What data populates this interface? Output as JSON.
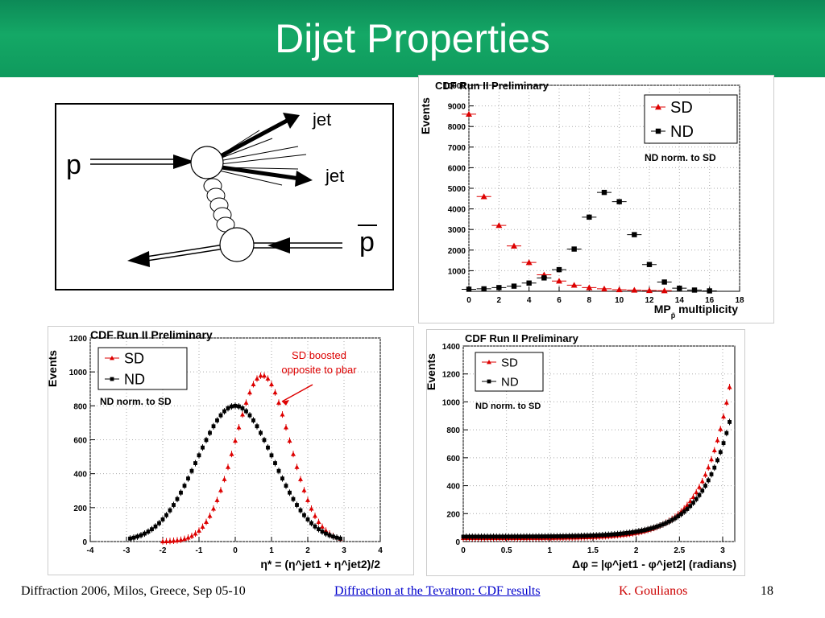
{
  "slide": {
    "title": "Dijet Properties",
    "footer_left": "Diffraction 2006, Milos, Greece, Sep 05-10",
    "footer_link": "Diffraction at the Tevatron: CDF results",
    "footer_author": "K. Goulianos",
    "page_number": "18"
  },
  "diagram": {
    "p_label": "p",
    "pbar_label": "p",
    "jet1_label": "jet",
    "jet2_label": "jet"
  },
  "colors": {
    "sd": "#dd0000",
    "nd": "#000000",
    "header": "#14a866"
  },
  "chart_data": [
    {
      "id": "multiplicity",
      "type": "scatter",
      "title": "CDF Run II Preliminary",
      "xlabel_main": "MP",
      "xlabel_sub": "p̄",
      "xlabel_rest": " multiplicity",
      "ylabel": "Events",
      "xlim": [
        0,
        18
      ],
      "ylim": [
        0,
        10000
      ],
      "xticks": [
        0,
        2,
        4,
        6,
        8,
        10,
        12,
        14,
        16,
        18
      ],
      "yticks": [
        1000,
        2000,
        3000,
        4000,
        5000,
        6000,
        7000,
        8000,
        9000,
        10000
      ],
      "annotation": "ND norm. to SD",
      "grid": true,
      "legend": "top-right",
      "series": [
        {
          "name": "SD",
          "marker": "triangle",
          "color": "#dd0000",
          "x": [
            0,
            1,
            2,
            3,
            4,
            5,
            6,
            7,
            8,
            9,
            10,
            11,
            12,
            13
          ],
          "y": [
            8600,
            4600,
            3200,
            2200,
            1400,
            800,
            500,
            300,
            180,
            120,
            80,
            60,
            40,
            30
          ]
        },
        {
          "name": "ND",
          "marker": "square",
          "color": "#000000",
          "x": [
            0,
            1,
            2,
            3,
            4,
            5,
            6,
            7,
            8,
            9,
            10,
            11,
            12,
            13,
            14,
            15,
            16
          ],
          "y": [
            100,
            120,
            180,
            250,
            400,
            650,
            1050,
            2050,
            3600,
            4800,
            4350,
            2750,
            1300,
            450,
            150,
            60,
            20
          ]
        }
      ]
    },
    {
      "id": "eta-star",
      "type": "scatter",
      "title": "CDF Run II Preliminary",
      "xlabel": "η* = (η^jet1 + η^jet2)/2",
      "ylabel": "Events",
      "xlim": [
        -4,
        4
      ],
      "ylim": [
        0,
        1200
      ],
      "xticks": [
        -4,
        -3,
        -2,
        -1,
        0,
        1,
        2,
        3,
        4
      ],
      "yticks": [
        0,
        200,
        400,
        600,
        800,
        1000,
        1200
      ],
      "annotation": "ND norm. to SD",
      "callout": "SD boosted opposite to pbar",
      "grid": true,
      "legend": "top-left",
      "series": [
        {
          "name": "SD",
          "marker": "triangle",
          "color": "#dd0000",
          "gauss": {
            "mean": 0.75,
            "sigma": 0.75,
            "amplitude": 980,
            "xmin": -2.0,
            "xmax": 2.9,
            "step": 0.1
          }
        },
        {
          "name": "ND",
          "marker": "square",
          "color": "#000000",
          "gauss": {
            "mean": 0.0,
            "sigma": 1.05,
            "amplitude": 800,
            "xmin": -2.9,
            "xmax": 2.9,
            "step": 0.1
          }
        }
      ]
    },
    {
      "id": "delta-phi",
      "type": "scatter",
      "title": "CDF Run II Preliminary",
      "xlabel": "Δφ = |φ^jet1 - φ^jet2| (radians)",
      "ylabel": "Events",
      "xlim": [
        0,
        3.14
      ],
      "ylim": [
        0,
        1400
      ],
      "xticks": [
        0,
        0.5,
        1,
        1.5,
        2,
        2.5,
        3
      ],
      "yticks": [
        0,
        200,
        400,
        600,
        800,
        1000,
        1200,
        1400
      ],
      "annotation": "ND norm. to SD",
      "grid": true,
      "legend": "top-left",
      "series": [
        {
          "name": "SD",
          "marker": "triangle",
          "color": "#dd0000",
          "expo": {
            "base": 25,
            "amplitude": 1150,
            "rate": 3.1,
            "xref": 3.1,
            "xmin": 0.0,
            "xmax": 3.1,
            "step": 0.035
          }
        },
        {
          "name": "ND",
          "marker": "square",
          "color": "#000000",
          "expo": {
            "base": 35,
            "amplitude": 870,
            "rate": 2.9,
            "xref": 3.1,
            "xmin": 0.0,
            "xmax": 3.1,
            "step": 0.035
          }
        }
      ]
    }
  ]
}
